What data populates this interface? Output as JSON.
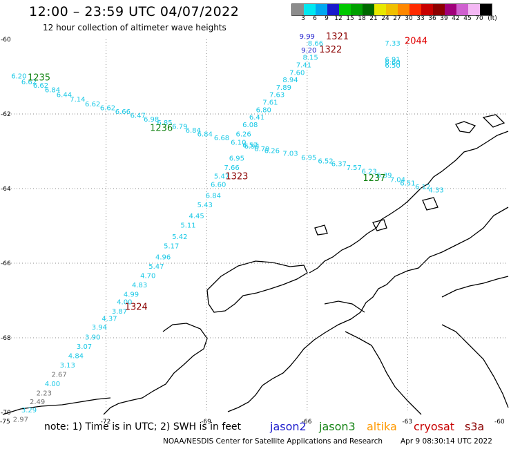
{
  "title": "12:00 – 23:59 UTC 04/07/2022",
  "subtitle": "12 hour collection of altimeter wave heights",
  "colors": {
    "land": "#000000",
    "grid": "#888888",
    "cyan": "#18c8e6",
    "gray": "#707070",
    "blue": "#1a1acc",
    "green": "#128212",
    "darkred": "#8b0000",
    "red": "#e00000"
  },
  "scale": {
    "unit": "(ft)",
    "ticks": [
      "3",
      "6",
      "9",
      "12",
      "15",
      "18",
      "21",
      "24",
      "27",
      "30",
      "33",
      "36",
      "39",
      "42",
      "45",
      "70"
    ],
    "swatches": [
      "#8c8c8c",
      "#00e8f0",
      "#00a8f0",
      "#1a1acc",
      "#00c800",
      "#00a000",
      "#006800",
      "#e8e800",
      "#f0c000",
      "#ff8800",
      "#ff2a00",
      "#c80000",
      "#8c0000",
      "#a0007a",
      "#d060d0",
      "#f4b8f4",
      "#000000"
    ]
  },
  "lat_labels": [
    "-60",
    "-62",
    "-64",
    "-66",
    "-68",
    "-70"
  ],
  "lon_labels": [
    "-75",
    "-72",
    "-69",
    "-66",
    "-63",
    "-60"
  ],
  "footer": {
    "note": "note: 1) Time is in UTC; 2) SWH is in feet",
    "credit": "NOAA/NESDIS Center for Satellite Applications and Research",
    "date": "Apr  9 08:30:14 UTC 2022"
  },
  "legend": {
    "jason2": {
      "label": "jason2",
      "color": "#1a1acc"
    },
    "jason3": {
      "label": "jason3",
      "color": "#128212"
    },
    "altika": {
      "label": "altika",
      "color": "#ff9900"
    },
    "cryosat": {
      "label": "cryosat",
      "color": "#c80000"
    },
    "s3a": {
      "label": "s3a",
      "color": "#8b0000"
    }
  },
  "time_labels": [
    {
      "text": "1235",
      "lon": -74.0,
      "lat": -61.1,
      "color": "green"
    },
    {
      "text": "1236",
      "lon": -70.35,
      "lat": -62.45,
      "color": "green"
    },
    {
      "text": "1237",
      "lon": -64.0,
      "lat": -63.8,
      "color": "green"
    },
    {
      "text": "1323",
      "lon": -68.1,
      "lat": -63.75,
      "color": "darkred"
    },
    {
      "text": "1324",
      "lon": -71.1,
      "lat": -67.25,
      "color": "darkred"
    },
    {
      "text": "1321",
      "lon": -65.1,
      "lat": -60.0,
      "color": "darkred"
    },
    {
      "text": "1322",
      "lon": -65.3,
      "lat": -60.35,
      "color": "darkred"
    },
    {
      "text": "2044",
      "lon": -62.75,
      "lat": -60.12,
      "color": "red"
    }
  ],
  "swh_points": [
    {
      "v": "6.20",
      "lon": -74.6,
      "lat": -61.05,
      "c": "cyan"
    },
    {
      "v": "6.62",
      "lon": -74.3,
      "lat": -61.2,
      "c": "cyan"
    },
    {
      "v": "6.62",
      "lon": -73.95,
      "lat": -61.3,
      "c": "cyan"
    },
    {
      "v": "6.84",
      "lon": -73.6,
      "lat": -61.42,
      "c": "cyan"
    },
    {
      "v": "6.44",
      "lon": -73.25,
      "lat": -61.55,
      "c": "cyan"
    },
    {
      "v": "7.14",
      "lon": -72.85,
      "lat": -61.67,
      "c": "cyan"
    },
    {
      "v": "6.62",
      "lon": -72.4,
      "lat": -61.8,
      "c": "cyan"
    },
    {
      "v": "6.62",
      "lon": -71.95,
      "lat": -61.9,
      "c": "cyan"
    },
    {
      "v": "6.66",
      "lon": -71.5,
      "lat": -62.0,
      "c": "cyan"
    },
    {
      "v": "6.47",
      "lon": -71.05,
      "lat": -62.1,
      "c": "cyan"
    },
    {
      "v": "6.98",
      "lon": -70.65,
      "lat": -62.2,
      "c": "cyan"
    },
    {
      "v": "6.85",
      "lon": -70.25,
      "lat": -62.3,
      "c": "cyan"
    },
    {
      "v": "6.79",
      "lon": -69.8,
      "lat": -62.4,
      "c": "cyan"
    },
    {
      "v": "6.84",
      "lon": -69.4,
      "lat": -62.5,
      "c": "cyan"
    },
    {
      "v": "6.84",
      "lon": -69.05,
      "lat": -62.6,
      "c": "cyan"
    },
    {
      "v": "6.68",
      "lon": -68.55,
      "lat": -62.7,
      "c": "cyan"
    },
    {
      "v": "6.10",
      "lon": -68.05,
      "lat": -62.82,
      "c": "cyan"
    },
    {
      "v": "6.57",
      "lon": -67.7,
      "lat": -62.9,
      "c": "cyan"
    },
    {
      "v": "6.79",
      "lon": -67.35,
      "lat": -63.0,
      "c": "cyan"
    },
    {
      "v": "6.26",
      "lon": -67.05,
      "lat": -63.05,
      "c": "cyan"
    },
    {
      "v": "7.03",
      "lon": -66.5,
      "lat": -63.12,
      "c": "cyan"
    },
    {
      "v": "6.95",
      "lon": -65.95,
      "lat": -63.23,
      "c": "cyan"
    },
    {
      "v": "6.52",
      "lon": -65.45,
      "lat": -63.32,
      "c": "cyan"
    },
    {
      "v": "6.37",
      "lon": -65.05,
      "lat": -63.4,
      "c": "cyan"
    },
    {
      "v": "7.57",
      "lon": -64.6,
      "lat": -63.5,
      "c": "cyan"
    },
    {
      "v": "6.23",
      "lon": -64.15,
      "lat": -63.6,
      "c": "cyan"
    },
    {
      "v": "6.39",
      "lon": -63.7,
      "lat": -63.7,
      "c": "cyan"
    },
    {
      "v": "7.04",
      "lon": -63.3,
      "lat": -63.82,
      "c": "cyan"
    },
    {
      "v": "6.51",
      "lon": -63.0,
      "lat": -63.92,
      "c": "cyan"
    },
    {
      "v": "6.12",
      "lon": -62.55,
      "lat": -64.02,
      "c": "cyan"
    },
    {
      "v": "4.33",
      "lon": -62.15,
      "lat": -64.1,
      "c": "cyan"
    },
    {
      "v": "9.99",
      "lon": -66.0,
      "lat": -59.98,
      "c": "blue"
    },
    {
      "v": "8.66",
      "lon": -65.75,
      "lat": -60.17,
      "c": "cyan"
    },
    {
      "v": "9.20",
      "lon": -65.95,
      "lat": -60.35,
      "c": "blue"
    },
    {
      "v": "8.15",
      "lon": -65.9,
      "lat": -60.55,
      "c": "cyan"
    },
    {
      "v": "7.41",
      "lon": -66.1,
      "lat": -60.75,
      "c": "cyan"
    },
    {
      "v": "7.60",
      "lon": -66.3,
      "lat": -60.95,
      "c": "cyan"
    },
    {
      "v": "8.94",
      "lon": -66.5,
      "lat": -61.15,
      "c": "cyan"
    },
    {
      "v": "7.89",
      "lon": -66.7,
      "lat": -61.35,
      "c": "cyan"
    },
    {
      "v": "7.63",
      "lon": -66.9,
      "lat": -61.55,
      "c": "cyan"
    },
    {
      "v": "7.61",
      "lon": -67.1,
      "lat": -61.75,
      "c": "cyan"
    },
    {
      "v": "6.80",
      "lon": -67.3,
      "lat": -61.95,
      "c": "cyan"
    },
    {
      "v": "6.41",
      "lon": -67.5,
      "lat": -62.15,
      "c": "cyan"
    },
    {
      "v": "6.08",
      "lon": -67.7,
      "lat": -62.35,
      "c": "cyan"
    },
    {
      "v": "6.26",
      "lon": -67.9,
      "lat": -62.6,
      "c": "cyan"
    },
    {
      "v": "6.94",
      "lon": -67.65,
      "lat": -62.93,
      "c": "cyan"
    },
    {
      "v": "6.95",
      "lon": -68.1,
      "lat": -63.25,
      "c": "cyan"
    },
    {
      "v": "7.66",
      "lon": -68.25,
      "lat": -63.5,
      "c": "cyan"
    },
    {
      "v": "5.47",
      "lon": -68.55,
      "lat": -63.73,
      "c": "cyan"
    },
    {
      "v": "6.60",
      "lon": -68.65,
      "lat": -63.95,
      "c": "cyan"
    },
    {
      "v": "6.84",
      "lon": -68.8,
      "lat": -64.25,
      "c": "cyan"
    },
    {
      "v": "5.43",
      "lon": -69.05,
      "lat": -64.5,
      "c": "cyan"
    },
    {
      "v": "4.45",
      "lon": -69.3,
      "lat": -64.8,
      "c": "cyan"
    },
    {
      "v": "5.11",
      "lon": -69.55,
      "lat": -65.05,
      "c": "cyan"
    },
    {
      "v": "5.42",
      "lon": -69.8,
      "lat": -65.35,
      "c": "cyan"
    },
    {
      "v": "5.17",
      "lon": -70.05,
      "lat": -65.6,
      "c": "cyan"
    },
    {
      "v": "4.96",
      "lon": -70.3,
      "lat": -65.9,
      "c": "cyan"
    },
    {
      "v": "5.47",
      "lon": -70.5,
      "lat": -66.15,
      "c": "cyan"
    },
    {
      "v": "4.70",
      "lon": -70.75,
      "lat": -66.4,
      "c": "cyan"
    },
    {
      "v": "4.83",
      "lon": -71.0,
      "lat": -66.65,
      "c": "cyan"
    },
    {
      "v": "4.99",
      "lon": -71.25,
      "lat": -66.9,
      "c": "cyan"
    },
    {
      "v": "4.00",
      "lon": -71.45,
      "lat": -67.1,
      "c": "cyan"
    },
    {
      "v": "3.87",
      "lon": -71.6,
      "lat": -67.35,
      "c": "cyan"
    },
    {
      "v": "4.37",
      "lon": -71.9,
      "lat": -67.55,
      "c": "cyan"
    },
    {
      "v": "3.94",
      "lon": -72.2,
      "lat": -67.78,
      "c": "cyan"
    },
    {
      "v": "3.90",
      "lon": -72.4,
      "lat": -68.05,
      "c": "cyan"
    },
    {
      "v": "3.07",
      "lon": -72.65,
      "lat": -68.3,
      "c": "cyan"
    },
    {
      "v": "4.84",
      "lon": -72.9,
      "lat": -68.55,
      "c": "cyan"
    },
    {
      "v": "3.13",
      "lon": -73.15,
      "lat": -68.8,
      "c": "cyan"
    },
    {
      "v": "2.67",
      "lon": -73.4,
      "lat": -69.05,
      "c": "gray"
    },
    {
      "v": "4.00",
      "lon": -73.6,
      "lat": -69.3,
      "c": "cyan"
    },
    {
      "v": "2.23",
      "lon": -73.85,
      "lat": -69.55,
      "c": "gray"
    },
    {
      "v": "2.49",
      "lon": -74.05,
      "lat": -69.78,
      "c": "gray"
    },
    {
      "v": "3.29",
      "lon": -74.3,
      "lat": -70.0,
      "c": "cyan"
    },
    {
      "v": "2.97",
      "lon": -74.55,
      "lat": -70.25,
      "c": "gray"
    },
    {
      "v": "7.33",
      "lon": -63.45,
      "lat": -60.17,
      "c": "cyan"
    },
    {
      "v": "6.91",
      "lon": -63.45,
      "lat": -60.6,
      "c": "cyan"
    },
    {
      "v": "6.60",
      "lon": -63.45,
      "lat": -60.68,
      "c": "cyan"
    },
    {
      "v": "6.50",
      "lon": -63.45,
      "lat": -60.76,
      "c": "cyan"
    }
  ]
}
